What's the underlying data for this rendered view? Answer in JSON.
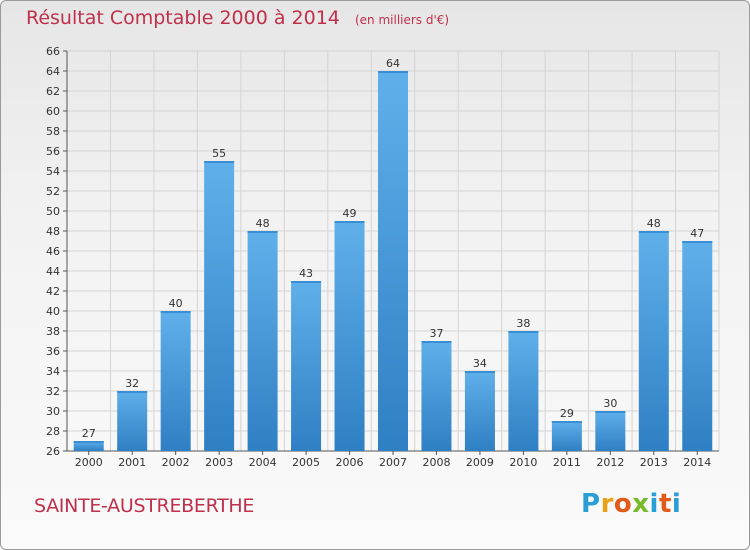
{
  "header": {
    "title": "Résultat Comptable 2000 à 2014",
    "unit": "(en milliers d'€)"
  },
  "footer": {
    "town": "SAINTE-AUSTREBERTHE",
    "logo_letters": [
      "P",
      "r",
      "o",
      "x",
      "i",
      "t",
      "i"
    ],
    "logo_colors": [
      "#2a9fd6",
      "#e8a21a",
      "#e05a1a",
      "#7ab929",
      "#2a9fd6",
      "#e05a1a",
      "#2a9fd6"
    ]
  },
  "colors": {
    "title": "#c0304a",
    "bar_light": "#5fb0ea",
    "bar_dark": "#2f7fc4",
    "grid": "#d4d4d4"
  },
  "chart_data": {
    "type": "bar",
    "title": "Résultat Comptable 2000 à 2014",
    "subtitle": "(en milliers d'€)",
    "xlabel": "",
    "ylabel": "",
    "categories": [
      "2000",
      "2001",
      "2002",
      "2003",
      "2004",
      "2005",
      "2006",
      "2007",
      "2008",
      "2009",
      "2010",
      "2011",
      "2012",
      "2013",
      "2014"
    ],
    "values": [
      27,
      32,
      40,
      55,
      48,
      43,
      49,
      64,
      37,
      34,
      38,
      29,
      30,
      48,
      47
    ],
    "ylim": [
      26,
      66
    ],
    "yticks": [
      26,
      28,
      30,
      32,
      34,
      36,
      38,
      40,
      42,
      44,
      46,
      48,
      50,
      52,
      54,
      56,
      58,
      60,
      62,
      64,
      66
    ],
    "grid": true,
    "legend": "none"
  }
}
